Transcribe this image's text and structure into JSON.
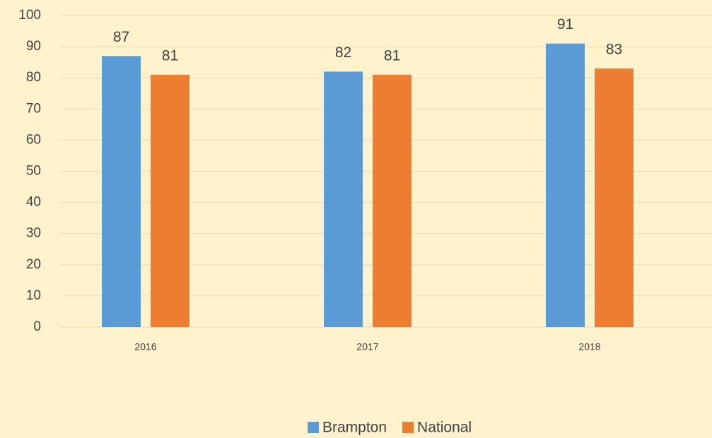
{
  "chart_data": {
    "type": "bar",
    "categories": [
      "2016",
      "2017",
      "2018"
    ],
    "series": [
      {
        "name": "Brampton",
        "color": "#5b9bd5",
        "values": [
          87,
          82,
          91
        ]
      },
      {
        "name": "National",
        "color": "#ed7d31",
        "values": [
          81,
          81,
          83
        ]
      }
    ],
    "ylim": [
      0,
      100
    ],
    "yticks": [
      0,
      10,
      20,
      30,
      40,
      50,
      60,
      70,
      80,
      90,
      100
    ],
    "grid": true,
    "legend": "bottom"
  }
}
